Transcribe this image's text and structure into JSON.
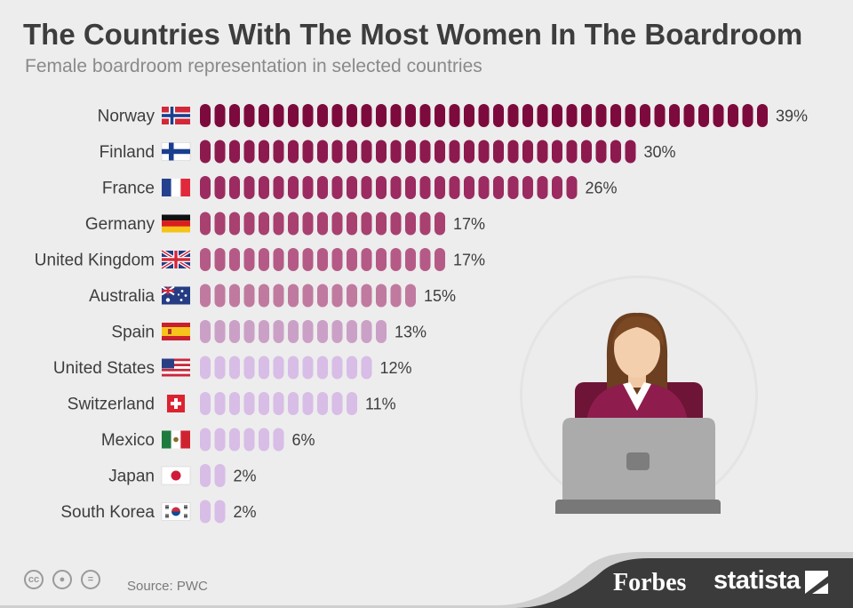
{
  "title": "The Countries With The Most Women In The Boardroom",
  "subtitle": "Female boardroom representation in selected countries",
  "source": "Source: PWC",
  "brands": {
    "forbes": "Forbes",
    "statista": "statista"
  },
  "license_icons": [
    "cc-icon",
    "attribution-icon",
    "no-derivatives-icon"
  ],
  "colors": {
    "background": "#ededed",
    "text": "#3d3d3d",
    "bar_shades": [
      "#7d0a3c",
      "#8d1a4e",
      "#9b2b60",
      "#a84070",
      "#b55a86",
      "#c07a9f",
      "#cba0c6",
      "#d8bde6"
    ],
    "footer": "#3b3b3b"
  },
  "chart_data": {
    "type": "bar",
    "orientation": "horizontal",
    "title": "The Countries With The Most Women In The Boardroom",
    "subtitle": "Female boardroom representation in selected countries",
    "unit": "%",
    "categories": [
      "Norway",
      "Finland",
      "France",
      "Germany",
      "United Kingdom",
      "Australia",
      "Spain",
      "United States",
      "Switzerland",
      "Mexico",
      "Japan",
      "South Korea"
    ],
    "values": [
      39,
      30,
      26,
      17,
      17,
      15,
      13,
      12,
      11,
      6,
      2,
      2
    ],
    "labels": [
      "39%",
      "30%",
      "26%",
      "17%",
      "17%",
      "15%",
      "13%",
      "12%",
      "11%",
      "6%",
      "2%",
      "2%"
    ],
    "flags": [
      "norway-flag-icon",
      "finland-flag-icon",
      "france-flag-icon",
      "germany-flag-icon",
      "uk-flag-icon",
      "australia-flag-icon",
      "spain-flag-icon",
      "usa-flag-icon",
      "switzerland-flag-icon",
      "mexico-flag-icon",
      "japan-flag-icon",
      "south-korea-flag-icon"
    ],
    "encoding": "one rounded pill per percentage point"
  }
}
